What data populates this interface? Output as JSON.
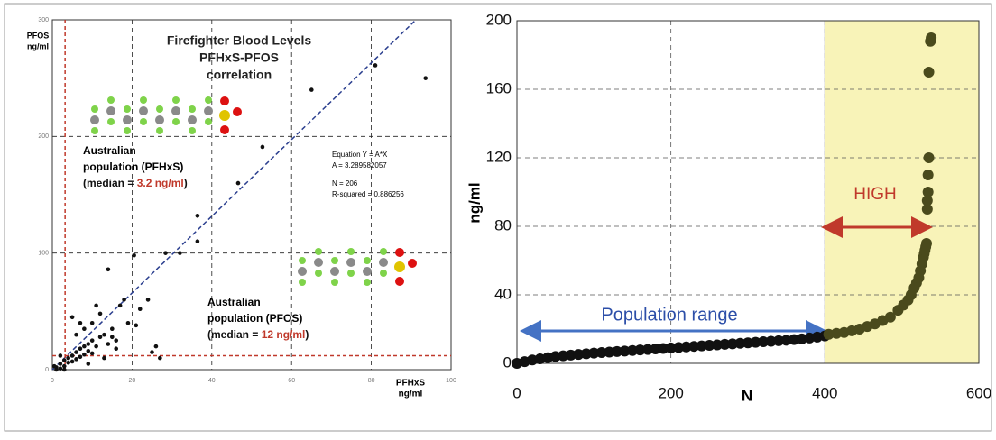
{
  "chart_data": [
    {
      "type": "scatter",
      "title": [
        "Firefighter Blood Levels",
        "PFHxS-PFOS",
        "correlation"
      ],
      "x_label": [
        "PFHxS",
        "ng/ml"
      ],
      "y_label": [
        "PFOS",
        "ng/ml"
      ],
      "xlim": [
        0,
        100
      ],
      "ylim": [
        0,
        300
      ],
      "xticks": [
        0,
        20,
        40,
        60,
        80,
        100
      ],
      "yticks": [
        0,
        100,
        200,
        300
      ],
      "grid": true,
      "equation": [
        "Equation Y = A*X",
        "A = 3.289582057",
        "N = 206",
        "R-squared = 0.886256"
      ],
      "fit_slope": 3.289582057,
      "fit_color": "#2b3f8f",
      "median_x": 3.2,
      "median_y": 12,
      "median_color": "#c0392b",
      "pfhxs_note": [
        "Australian",
        "population (PFHxS)",
        "(median = ",
        "3.2 ng/ml",
        ")"
      ],
      "pfos_note": [
        "Australian",
        "population (PFOS)",
        "(median = ",
        "12 ng/ml",
        ")"
      ],
      "series": [
        {
          "color": "#111111",
          "x": [
            1,
            2,
            3,
            4,
            5,
            6,
            7,
            8,
            9,
            10,
            2,
            3,
            4,
            5,
            6,
            7,
            8,
            9,
            10,
            11,
            12,
            13,
            14,
            15,
            16,
            17,
            18,
            19,
            5,
            8,
            10,
            11,
            12,
            15,
            21,
            22,
            24,
            25,
            26,
            27,
            14,
            20.5,
            28.4,
            32,
            36.4,
            36.4,
            46.6,
            52.7,
            65,
            81,
            93.6,
            1,
            3,
            0.5,
            2,
            6,
            9,
            13,
            16,
            7
          ],
          "values": [
            2,
            5,
            8,
            10,
            12,
            15,
            18,
            20,
            22,
            25,
            1,
            3,
            6,
            7,
            9,
            11,
            13,
            16,
            14,
            20,
            28,
            30,
            22,
            35,
            25,
            55,
            60,
            40,
            45,
            35,
            40,
            55,
            48,
            28,
            38,
            52,
            60,
            15,
            20,
            10,
            86,
            98,
            100,
            100,
            110,
            132,
            160,
            191,
            240,
            261,
            250,
            0,
            0,
            3,
            12,
            30,
            5,
            10,
            18,
            40
          ]
        }
      ]
    },
    {
      "type": "scatter",
      "x_label": "N",
      "y_label": "ng/ml",
      "xlim": [
        0,
        600
      ],
      "ylim": [
        0,
        200
      ],
      "xticks": [
        0,
        200,
        400,
        600
      ],
      "yticks": [
        0,
        40,
        80,
        120,
        160,
        200
      ],
      "grid": true,
      "shade_x": [
        400,
        600
      ],
      "shade_color": "#f8f3b8",
      "annotations": [
        "Population range",
        "HIGH"
      ],
      "series": [
        {
          "color": "#111111",
          "x": [
            0,
            10,
            20,
            30,
            40,
            50,
            60,
            70,
            80,
            90,
            100,
            110,
            120,
            130,
            140,
            150,
            160,
            170,
            180,
            190,
            200,
            210,
            220,
            230,
            240,
            250,
            260,
            270,
            280,
            290,
            300,
            310,
            320,
            330,
            340,
            350,
            360,
            370,
            380,
            390,
            400
          ],
          "values": [
            0,
            1,
            2,
            2.6,
            3.3,
            4,
            4.4,
            4.8,
            5.2,
            5.6,
            6,
            6.3,
            6.6,
            6.9,
            7.2,
            7.5,
            7.8,
            8.1,
            8.4,
            8.7,
            9,
            9.3,
            9.6,
            9.9,
            10.2,
            10.5,
            10.8,
            11.1,
            11.4,
            11.7,
            12,
            12.3,
            12.6,
            12.9,
            13.2,
            13.5,
            13.9,
            14.3,
            14.8,
            15.3,
            16
          ]
        },
        {
          "color": "#4a4a1c",
          "x": [
            405,
            415,
            425,
            435,
            445,
            455,
            465,
            475,
            485,
            495,
            502,
            508,
            512,
            516,
            519,
            522,
            524,
            526,
            528,
            529,
            530,
            531,
            532,
            533,
            533,
            534,
            534,
            535,
            535,
            537,
            538
          ],
          "values": [
            17,
            17.5,
            18,
            19,
            20,
            21.5,
            23,
            25,
            27,
            31,
            34,
            37,
            40,
            44,
            47,
            50,
            54,
            58,
            62,
            64,
            66,
            68,
            70,
            90,
            95,
            100,
            110,
            120,
            170,
            188,
            190
          ]
        }
      ]
    }
  ]
}
